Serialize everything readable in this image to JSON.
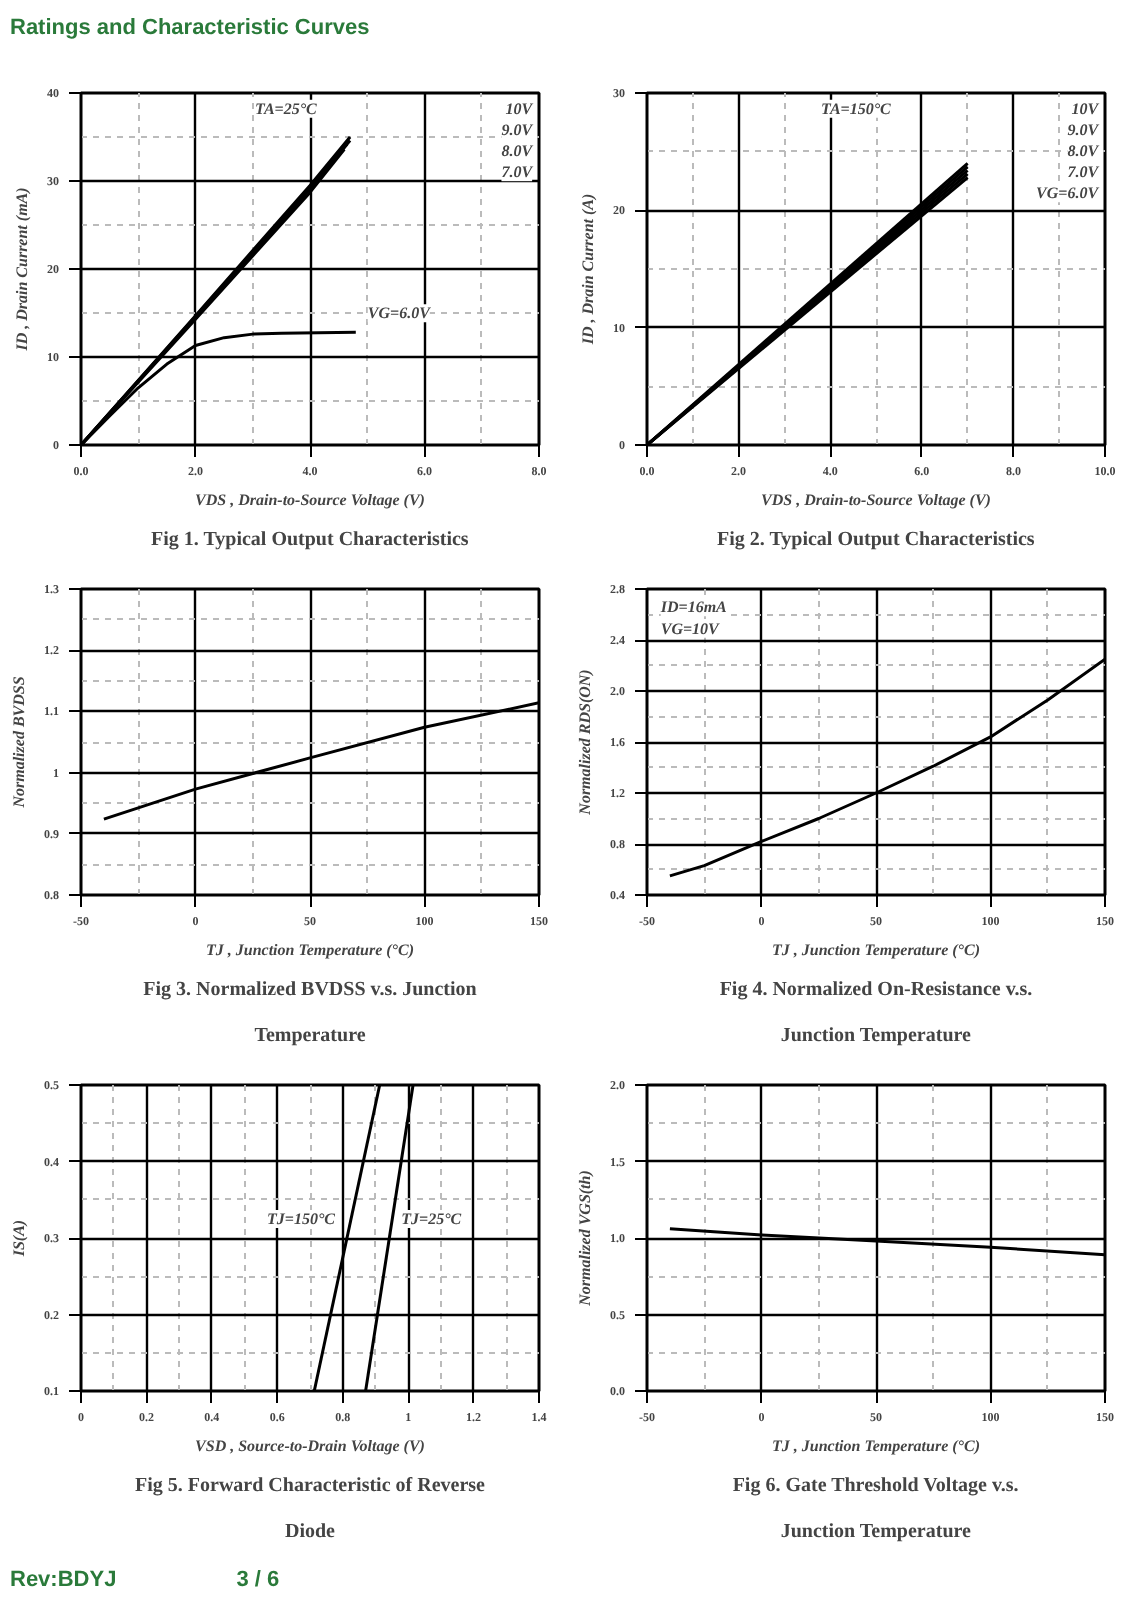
{
  "chart_data": [
    {
      "type": "line",
      "title": "Fig 1. Typical Output Characteristics",
      "xlabel": "VDS , Drain-to-Source Voltage (V)",
      "ylabel": "ID , Drain Current (mA)",
      "xlim": [
        0,
        8
      ],
      "ylim": [
        0,
        40
      ],
      "xticks": [
        {
          "value": 0,
          "label": "0.0"
        },
        {
          "value": 2,
          "label": "2.0"
        },
        {
          "value": 4,
          "label": "4.0"
        },
        {
          "value": 6,
          "label": "6.0"
        },
        {
          "value": 8,
          "label": "8.0"
        }
      ],
      "yticks": [
        0,
        10,
        20,
        30,
        40
      ],
      "grid": true,
      "series": [
        {
          "color": "#000000",
          "x": [
            0,
            2,
            4,
            4.7
          ],
          "values": [
            0,
            14.7,
            29.5,
            35
          ]
        },
        {
          "color": "#000000",
          "x": [
            0,
            2,
            4,
            4.7
          ],
          "values": [
            0,
            14.6,
            29.3,
            34.6
          ]
        },
        {
          "color": "#000000",
          "x": [
            0,
            2,
            4,
            4.65
          ],
          "values": [
            0,
            14.5,
            29.1,
            34.2
          ]
        },
        {
          "color": "#000000",
          "x": [
            0,
            2,
            4,
            4.6
          ],
          "values": [
            0,
            14.3,
            28.7,
            33.6
          ]
        },
        {
          "color": "#000000",
          "x": [
            0,
            0.5,
            1,
            1.5,
            2,
            2.5,
            3,
            3.5,
            4.8
          ],
          "values": [
            0,
            3.3,
            6.5,
            9.2,
            11.3,
            12.2,
            12.6,
            12.7,
            12.8
          ]
        }
      ],
      "annotations": [
        "Ratings and Characteristic Curves",
        "TA=25°C",
        "10V",
        "9.0V",
        "8.0V",
        "7.0V",
        {
          "text": "VG=6.0V",
          "x": 4.8,
          "y": 12.8
        }
      ]
    },
    {
      "type": "line",
      "title": "Fig 2. Typical Output Characteristics",
      "xlabel": "VDS , Drain-to-Source Voltage (V)",
      "ylabel": "ID , Drain Current (A)",
      "xlim": [
        0,
        10
      ],
      "ylim": [
        0,
        30
      ],
      "xticks": [
        {
          "value": 0,
          "label": "0.0"
        },
        {
          "value": 2,
          "label": "2.0"
        },
        {
          "value": 4,
          "label": "4.0"
        },
        {
          "value": 6,
          "label": "6.0"
        },
        {
          "value": 8,
          "label": "8.0"
        },
        {
          "value": 10,
          "label": "10.0"
        }
      ],
      "yticks": [
        0,
        10,
        20,
        30
      ],
      "grid": true,
      "series": [
        {
          "color": "#000000",
          "x": [
            0,
            7
          ],
          "values": [
            0,
            24
          ]
        },
        {
          "color": "#000000",
          "x": [
            0,
            7
          ],
          "values": [
            0,
            23.7
          ]
        },
        {
          "color": "#000000",
          "x": [
            0,
            7
          ],
          "values": [
            0,
            23.4
          ]
        },
        {
          "color": "#000000",
          "x": [
            0,
            7
          ],
          "values": [
            0,
            23.1
          ]
        },
        {
          "color": "#000000",
          "x": [
            0,
            7
          ],
          "values": [
            0,
            22.8
          ]
        }
      ],
      "annotations": [
        "TA=150°C",
        "10V",
        "9.0V",
        "8.0V",
        "7.0V",
        "VG=6.0V"
      ]
    },
    {
      "type": "line",
      "title": "Fig 3. Normalized BVDSS v.s. Junction Temperature",
      "xlabel": "TJ , Junction Temperature (°C)",
      "ylabel": "Normalized BVDSS",
      "xlim": [
        -50,
        150
      ],
      "ylim": [
        0.8,
        1.3
      ],
      "xticks": [
        -50,
        0,
        50,
        100,
        150
      ],
      "yticks": [
        0.8,
        0.9,
        1,
        1.1,
        1.2,
        1.3
      ],
      "grid": true,
      "series": [
        {
          "color": "#000000",
          "x": [
            -40,
            0,
            50,
            100,
            150
          ],
          "values": [
            0.924,
            0.973,
            1.024,
            1.074,
            1.114
          ]
        }
      ]
    },
    {
      "type": "line",
      "title": "Fig 4. Normalized On-Resistance v.s. Junction Temperature",
      "xlabel": "TJ , Junction Temperature (°C)",
      "ylabel": "Normalized RDS(ON)",
      "xlim": [
        -50,
        150
      ],
      "ylim": [
        0.4,
        2.8
      ],
      "xticks": [
        -50,
        0,
        50,
        100,
        150
      ],
      "yticks": [
        0.4,
        0.8,
        1.2,
        1.6,
        {
          "value": 2,
          "label": "2.0"
        },
        2.4,
        2.8
      ],
      "grid": true,
      "series": [
        {
          "color": "#000000",
          "x": [
            -40,
            -25,
            0,
            25,
            50,
            75,
            100,
            125,
            150
          ],
          "values": [
            0.55,
            0.63,
            0.82,
            1.0,
            1.2,
            1.41,
            1.64,
            1.93,
            2.25
          ]
        }
      ],
      "annotations": [
        "ID=16mA",
        "VG=10V"
      ]
    },
    {
      "type": "line",
      "title": "Fig 5. Forward Characteristic of Reverse Diode",
      "xlabel": "VSD , Source-to-Drain Voltage (V)",
      "ylabel": "IS(A)",
      "xlim": [
        0,
        1.4
      ],
      "ylim": [
        0.1,
        0.5
      ],
      "xticks": [
        0,
        0.2,
        0.4,
        0.6,
        0.8,
        1,
        1.2,
        1.4
      ],
      "yticks": [
        0.1,
        0.2,
        0.3,
        0.4,
        0.5
      ],
      "grid": true,
      "series": [
        {
          "color": "#000000",
          "x": [
            0.713,
            0.913
          ],
          "values": [
            0.1,
            0.5
          ]
        },
        {
          "color": "#000000",
          "x": [
            0.87,
            1.015
          ],
          "values": [
            0.1,
            0.5
          ]
        }
      ],
      "annotations": [
        {
          "text": "TJ=150°C",
          "x": 0.813,
          "y": 0.3
        },
        {
          "text": "TJ=25°C",
          "x": 0.9425,
          "y": 0.3
        }
      ]
    },
    {
      "type": "line",
      "title": "Fig 6. Gate Threshold Voltage v.s. Junction Temperature",
      "xlabel": "TJ , Junction Temperature (°C)",
      "ylabel": "Normalized VGS(th)",
      "xlim": [
        -50,
        150
      ],
      "ylim": [
        0,
        2
      ],
      "xticks": [
        -50,
        0,
        50,
        100,
        150
      ],
      "yticks": [
        {
          "value": 0,
          "label": "0.0"
        },
        0.5,
        {
          "value": 1,
          "label": "1.0"
        },
        1.5,
        {
          "value": 2,
          "label": "2.0"
        }
      ],
      "grid": true,
      "series": [
        {
          "color": "#000000",
          "x": [
            -40,
            0,
            50,
            100,
            150
          ],
          "values": [
            1.06,
            1.02,
            0.98,
            0.94,
            0.89
          ]
        }
      ],
      "annotations": [
        "Rev:BDYJ",
        "3 / 6"
      ]
    }
  ]
}
